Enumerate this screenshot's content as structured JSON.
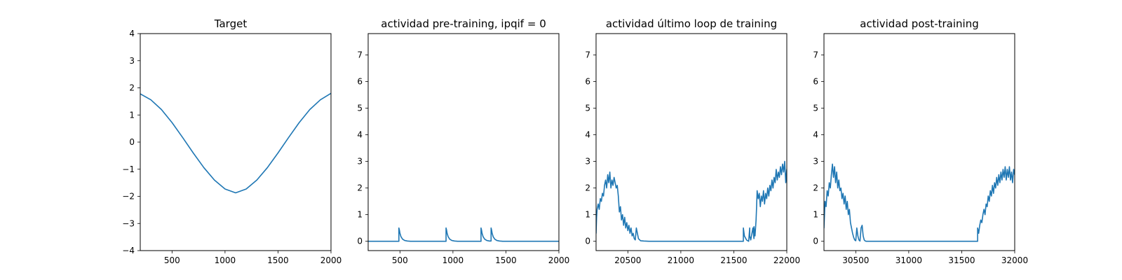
{
  "chart_data": [
    {
      "type": "line",
      "title": "Target",
      "xlabel": "",
      "ylabel": "",
      "xlim": [
        200,
        2000
      ],
      "ylim": [
        -4,
        4
      ],
      "x_ticks": [
        500,
        1000,
        1500,
        2000
      ],
      "x_tick_labels": [
        "500",
        "1000",
        "1500",
        "2000"
      ],
      "y_ticks": [
        -4,
        -3,
        -2,
        -1,
        0,
        1,
        2,
        3,
        4
      ],
      "y_tick_labels": [
        "−4",
        "−3",
        "−2",
        "−1",
        "0",
        "1",
        "2",
        "3",
        "4"
      ],
      "grid": false,
      "series": [
        {
          "color": "#1f77b4",
          "x": [
            200,
            300,
            400,
            500,
            600,
            700,
            800,
            900,
            1000,
            1100,
            1200,
            1300,
            1400,
            1500,
            1600,
            1700,
            1800,
            1900,
            2000
          ],
          "y": [
            1.78,
            1.56,
            1.2,
            0.72,
            0.17,
            -0.4,
            -0.94,
            -1.4,
            -1.73,
            -1.87,
            -1.73,
            -1.4,
            -0.94,
            -0.4,
            0.17,
            0.72,
            1.2,
            1.56,
            1.8
          ]
        }
      ]
    },
    {
      "type": "line",
      "title": "actividad pre-training, ipqif = 0",
      "xlabel": "",
      "ylabel": "",
      "xlim": [
        200,
        2000
      ],
      "ylim": [
        -0.35,
        7.8
      ],
      "x_ticks": [
        500,
        1000,
        1500,
        2000
      ],
      "x_tick_labels": [
        "500",
        "1000",
        "1500",
        "2000"
      ],
      "y_ticks": [
        0,
        1,
        2,
        3,
        4,
        5,
        6,
        7
      ],
      "y_tick_labels": [
        "0",
        "1",
        "2",
        "3",
        "4",
        "5",
        "6",
        "7"
      ],
      "grid": false,
      "series": [
        {
          "color": "#1f77b4",
          "x": [
            200,
            490,
            490,
            495,
            500,
            510,
            525,
            545,
            570,
            600,
            935,
            935,
            940,
            945,
            955,
            970,
            990,
            1015,
            1045,
            1265,
            1265,
            1270,
            1275,
            1285,
            1300,
            1320,
            1345,
            1360,
            1360,
            1365,
            1370,
            1380,
            1395,
            1415,
            1440,
            1470,
            2000
          ],
          "y": [
            0,
            0,
            0.5,
            0.42,
            0.3,
            0.17,
            0.08,
            0.03,
            0.01,
            0,
            0,
            0.5,
            0.42,
            0.3,
            0.17,
            0.08,
            0.03,
            0.01,
            0,
            0,
            0.5,
            0.42,
            0.3,
            0.17,
            0.08,
            0.03,
            0.01,
            0.01,
            0.5,
            0.42,
            0.3,
            0.17,
            0.08,
            0.03,
            0.01,
            0,
            0
          ]
        }
      ]
    },
    {
      "type": "line",
      "title": "actividad último loop de training",
      "xlabel": "",
      "ylabel": "",
      "xlim": [
        20200,
        22000
      ],
      "ylim": [
        -0.35,
        7.8
      ],
      "x_ticks": [
        20500,
        21000,
        21500,
        22000
      ],
      "x_tick_labels": [
        "20500",
        "21000",
        "21500",
        "22000"
      ],
      "y_ticks": [
        0,
        1,
        2,
        3,
        4,
        5,
        6,
        7
      ],
      "y_tick_labels": [
        "0",
        "1",
        "2",
        "3",
        "4",
        "5",
        "6",
        "7"
      ],
      "grid": false,
      "series": [
        {
          "color": "#1f77b4",
          "x": [
            20200,
            20205,
            20210,
            20220,
            20230,
            20240,
            20250,
            20260,
            20270,
            20280,
            20290,
            20300,
            20310,
            20320,
            20330,
            20340,
            20350,
            20360,
            20370,
            20380,
            20390,
            20400,
            20410,
            20420,
            20430,
            20440,
            20450,
            20460,
            20470,
            20480,
            20490,
            20500,
            20510,
            20520,
            20530,
            20540,
            20550,
            20560,
            20570,
            20580,
            20590,
            20600,
            20620,
            20650,
            20700,
            21580,
            21590,
            21590,
            21600,
            21620,
            21640,
            21650,
            21650,
            21660,
            21680,
            21690,
            21690,
            21700,
            21710,
            21715,
            21720,
            21730,
            21740,
            21750,
            21760,
            21770,
            21780,
            21790,
            21800,
            21810,
            21820,
            21830,
            21840,
            21850,
            21860,
            21870,
            21880,
            21890,
            21900,
            21910,
            21920,
            21930,
            21940,
            21950,
            21960,
            21970,
            21980,
            21990,
            22000
          ],
          "y": [
            0.3,
            0.9,
            1.2,
            1.4,
            1.2,
            1.6,
            1.5,
            1.8,
            1.7,
            2.1,
            2.3,
            2.0,
            2.5,
            2.2,
            2.6,
            2.0,
            2.3,
            2.1,
            2.4,
            2.2,
            2.0,
            2.1,
            1.7,
            1.1,
            1.3,
            0.8,
            1.0,
            0.6,
            0.9,
            0.5,
            0.7,
            0.4,
            0.6,
            0.3,
            0.5,
            0.2,
            0.3,
            0.1,
            0.05,
            0.5,
            0.3,
            0.1,
            0.02,
            0.01,
            0,
            0,
            0,
            0.5,
            0.2,
            0.05,
            0,
            0.5,
            0.2,
            0.05,
            0.5,
            0.1,
            0.55,
            0.2,
            0.8,
            1.3,
            1.9,
            1.6,
            1.8,
            1.3,
            1.7,
            1.5,
            1.9,
            1.4,
            1.8,
            1.6,
            2.0,
            1.7,
            2.1,
            1.9,
            2.3,
            2.0,
            2.4,
            2.2,
            2.7,
            2.3,
            2.6,
            2.4,
            2.8,
            2.5,
            2.9,
            2.6,
            3.0,
            2.2,
            2.7
          ]
        }
      ]
    },
    {
      "type": "line",
      "title": "actividad post-training",
      "xlabel": "",
      "ylabel": "",
      "xlim": [
        30200,
        32000
      ],
      "ylim": [
        -0.35,
        7.8
      ],
      "x_ticks": [
        30500,
        31000,
        31500,
        32000
      ],
      "x_tick_labels": [
        "30500",
        "31000",
        "31500",
        "32000"
      ],
      "y_ticks": [
        0,
        1,
        2,
        3,
        4,
        5,
        6,
        7
      ],
      "y_tick_labels": [
        "0",
        "1",
        "2",
        "3",
        "4",
        "5",
        "6",
        "7"
      ],
      "grid": false,
      "series": [
        {
          "color": "#1f77b4",
          "x": [
            30200,
            30205,
            30210,
            30220,
            30230,
            30240,
            30250,
            30260,
            30270,
            30280,
            30290,
            30300,
            30310,
            30320,
            30330,
            30340,
            30350,
            30360,
            30370,
            30380,
            30390,
            30400,
            30410,
            30420,
            30430,
            30440,
            30450,
            30460,
            30470,
            30480,
            30490,
            30500,
            30510,
            30520,
            30530,
            30540,
            30550,
            30560,
            30570,
            30580,
            30590,
            30600,
            30620,
            30650,
            30700,
            31650,
            31650,
            31660,
            31670,
            31680,
            31690,
            31700,
            31710,
            31720,
            31730,
            31740,
            31750,
            31760,
            31770,
            31780,
            31790,
            31800,
            31810,
            31820,
            31830,
            31840,
            31850,
            31860,
            31870,
            31880,
            31890,
            31900,
            31910,
            31920,
            31930,
            31940,
            31950,
            31960,
            31970,
            31980,
            31990,
            32000
          ],
          "y": [
            0.5,
            1.0,
            1.5,
            1.3,
            1.9,
            1.7,
            2.2,
            2.0,
            2.5,
            2.9,
            2.4,
            2.8,
            2.2,
            2.6,
            2.0,
            2.3,
            1.9,
            2.0,
            1.6,
            1.8,
            1.4,
            1.7,
            1.2,
            1.5,
            1.0,
            1.2,
            0.7,
            0.5,
            0.3,
            0.15,
            0.05,
            0.02,
            0.5,
            0.2,
            0.05,
            0.01,
            0.5,
            0.6,
            0.2,
            0.05,
            0.01,
            0,
            0,
            0,
            0,
            0,
            0.5,
            0.3,
            0.6,
            0.8,
            0.7,
            1.0,
            1.2,
            1.0,
            1.4,
            1.3,
            1.7,
            1.5,
            1.9,
            1.7,
            2.1,
            1.8,
            2.2,
            2.0,
            2.4,
            2.1,
            2.5,
            2.2,
            2.6,
            2.3,
            2.7,
            2.4,
            2.8,
            2.3,
            2.7,
            2.4,
            2.8,
            2.3,
            2.6,
            2.2,
            2.7,
            2.5
          ]
        }
      ]
    }
  ]
}
